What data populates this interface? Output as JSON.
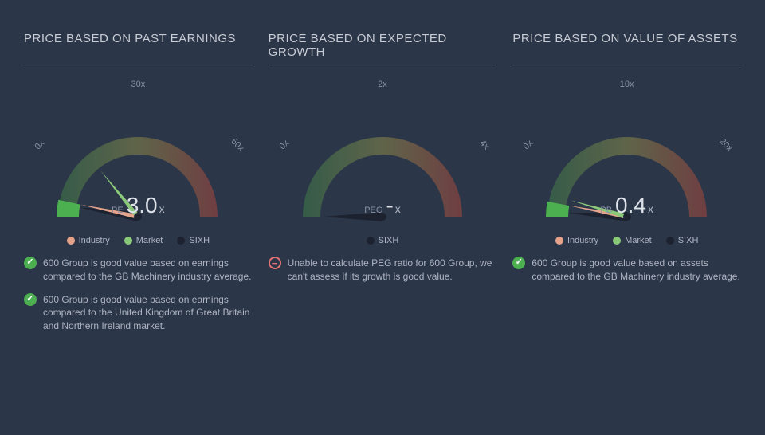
{
  "background_color": "#2b3648",
  "text_color": "#c8ccd4",
  "text_muted": "#8a92a6",
  "divider_color": "#5a6375",
  "legend_colors": {
    "industry": "#e6a38b",
    "market": "#8bc97a",
    "sixh": "#1c2230"
  },
  "legend_labels": {
    "industry": "Industry",
    "market": "Market",
    "sixh": "SIXH"
  },
  "gauge_gradient": {
    "start": "#3d7a49",
    "mid": "#8a8a4a",
    "end": "#a7453d"
  },
  "panels": [
    {
      "title": "PRICE BASED ON PAST EARNINGS",
      "metric": "PE",
      "value": "3.0",
      "suffix": "x",
      "scale_start": "0x",
      "scale_mid": "30x",
      "scale_end": "60x",
      "max": 60,
      "needles": [
        {
          "kind": "sixh",
          "value": 3.0,
          "color": "#1c2230",
          "width": 6
        },
        {
          "kind": "industry",
          "value": 4.0,
          "color": "#e6a38b",
          "width": 3
        },
        {
          "kind": "market",
          "value": 17,
          "color": "#8bc97a",
          "width": 3
        }
      ],
      "wedge": {
        "from": 0,
        "to": 4,
        "color": "#4caf50"
      },
      "legend": [
        "industry",
        "market",
        "sixh"
      ],
      "notes": [
        {
          "icon": "check",
          "text": "600 Group is good value based on earnings compared to the GB Machinery industry average."
        },
        {
          "icon": "check",
          "text": "600 Group is good value based on earnings compared to the United Kingdom of Great Britain and Northern Ireland market."
        }
      ]
    },
    {
      "title": "PRICE BASED ON EXPECTED GROWTH",
      "metric": "PEG",
      "value": "-",
      "suffix": " x",
      "scale_start": "0x",
      "scale_mid": "2x",
      "scale_end": "4x",
      "max": 4,
      "needles": [
        {
          "kind": "sixh",
          "value": 0,
          "color": "#1c2230",
          "width": 6
        }
      ],
      "wedge": null,
      "legend": [
        "sixh"
      ],
      "notes": [
        {
          "icon": "neg",
          "text": "Unable to calculate PEG ratio for 600 Group, we can't assess if its growth is good value."
        }
      ]
    },
    {
      "title": "PRICE BASED ON VALUE OF ASSETS",
      "metric": "PB",
      "value": "0.4",
      "suffix": "x",
      "scale_start": "0x",
      "scale_mid": "10x",
      "scale_end": "20x",
      "max": 20,
      "needles": [
        {
          "kind": "sixh",
          "value": 0.4,
          "color": "#1c2230",
          "width": 6
        },
        {
          "kind": "industry",
          "value": 1.2,
          "color": "#e6a38b",
          "width": 3
        },
        {
          "kind": "market",
          "value": 1.8,
          "color": "#8bc97a",
          "width": 3
        }
      ],
      "wedge": {
        "from": 0,
        "to": 1.2,
        "color": "#4caf50"
      },
      "legend": [
        "industry",
        "market",
        "sixh"
      ],
      "notes": [
        {
          "icon": "check",
          "text": "600 Group is good value based on assets compared to the GB Machinery industry average."
        }
      ]
    }
  ]
}
